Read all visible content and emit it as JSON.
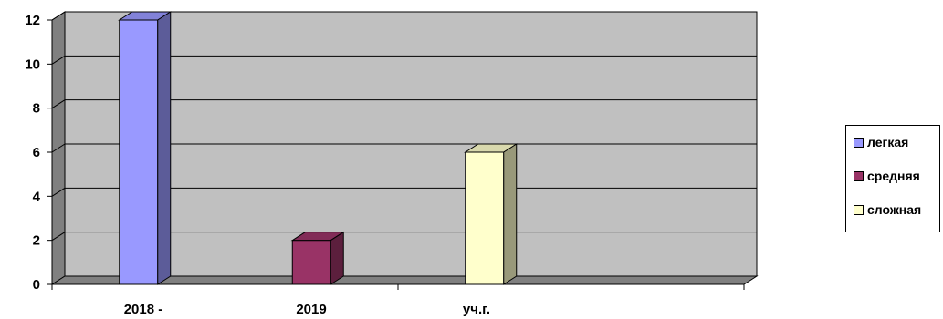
{
  "chart_data": {
    "type": "bar",
    "categories": [
      "2018 -",
      "2019",
      "уч.г."
    ],
    "series": [
      {
        "name": "легкая",
        "color": "#9999ff",
        "values": [
          12,
          null,
          null
        ]
      },
      {
        "name": "средняя",
        "color": "#993366",
        "values": [
          null,
          2,
          null
        ]
      },
      {
        "name": "сложная",
        "color": "#ffffcc",
        "values": [
          null,
          null,
          6
        ]
      }
    ],
    "ylim": [
      0,
      12
    ],
    "yticks": [
      0,
      2,
      4,
      6,
      8,
      10,
      12
    ],
    "grid": true,
    "legend_position": "right",
    "plot_background": "#c0c0c0"
  },
  "legend": {
    "items": [
      {
        "label": "легкая"
      },
      {
        "label": "средняя"
      },
      {
        "label": "сложная"
      }
    ]
  }
}
